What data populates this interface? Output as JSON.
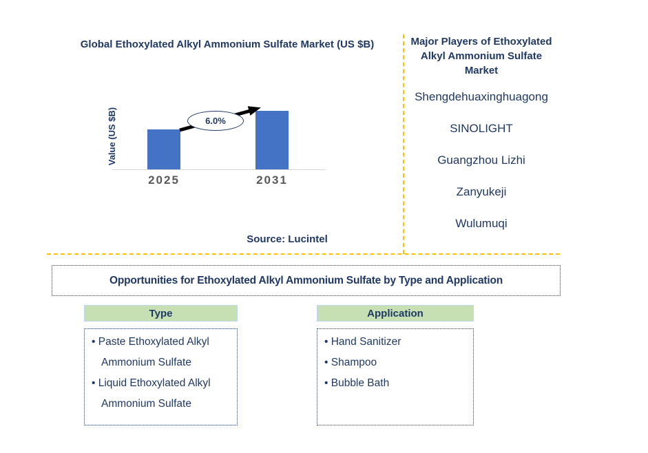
{
  "colors": {
    "text_navy": "#1f3864",
    "bar_blue": "#4472c4",
    "divider_orange": "#ffc000",
    "header_green": "#c6e0b4",
    "axis_gray": "#d6d6d6",
    "year_label_gray": "#595959"
  },
  "chart": {
    "title": "Global Ethoxylated Alkyl Ammonium Sulfate Market (US $B)",
    "y_axis_label": "Value (US $B)",
    "growth_label": "6.0%",
    "source": "Source: Lucintel"
  },
  "chart_data": {
    "type": "bar",
    "title": "Global Ethoxylated Alkyl Ammonium Sulfate Market (US $B)",
    "categories": [
      "2025",
      "2031"
    ],
    "values": [
      1.0,
      1.47
    ],
    "xlabel": "",
    "ylabel": "Value (US $B)",
    "value_axis_labeled": false,
    "note": "No numeric axis ticks shown; values are relative bar heights estimated from pixels",
    "annotations": [
      "6.0% growth arrow between 2025 and 2031 bars"
    ],
    "bar_color": "#4472c4",
    "grid": false,
    "legend": false
  },
  "players": {
    "heading": "Major Players of Ethoxylated Alkyl Ammonium Sulfate Market",
    "companies": [
      "Shengdehuaxinghuagong",
      "SINOLIGHT",
      "Guangzhou Lizhi",
      "Zanyukeji",
      "Wulumuqi"
    ]
  },
  "opportunities": {
    "title": "Opportunities for Ethoxylated Alkyl Ammonium Sulfate by Type and Application",
    "type": {
      "header": "Type",
      "items": [
        "Paste Ethoxylated Alkyl Ammonium Sulfate",
        "Liquid Ethoxylated Alkyl Ammonium Sulfate"
      ]
    },
    "application": {
      "header": "Application",
      "items": [
        "Hand Sanitizer",
        "Shampoo",
        "Bubble Bath"
      ]
    }
  }
}
